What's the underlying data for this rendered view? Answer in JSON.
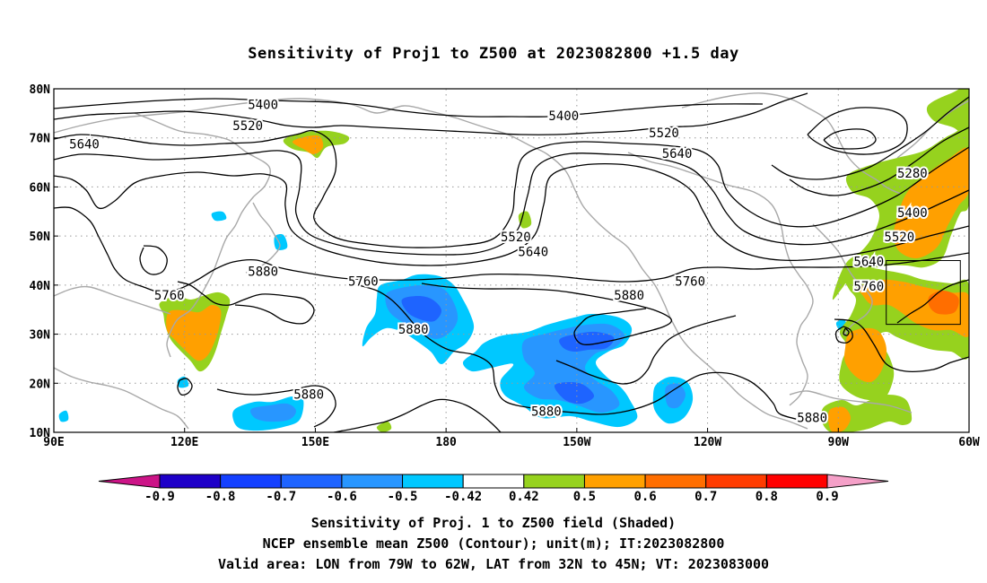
{
  "title": "Sensitivity of Proj1 to Z500 at 2023082800 +1.5 day",
  "lat_labels": [
    "80N",
    "70N",
    "60N",
    "50N",
    "40N",
    "30N",
    "20N",
    "10N"
  ],
  "lon_labels": [
    "90E",
    "120E",
    "150E",
    "180",
    "150W",
    "120W",
    "90W",
    "60W"
  ],
  "contour_labels": [
    {
      "text": "5400",
      "lon": 138,
      "lat": 76.8
    },
    {
      "text": "5400",
      "lon": -153,
      "lat": 74.5
    },
    {
      "text": "5520",
      "lon": 134.5,
      "lat": 72.5
    },
    {
      "text": "5520",
      "lon": -130,
      "lat": 71.0
    },
    {
      "text": "5640",
      "lon": 97,
      "lat": 68.8
    },
    {
      "text": "5640",
      "lon": -127,
      "lat": 66.8
    },
    {
      "text": "5520",
      "lon": -164,
      "lat": 49.8
    },
    {
      "text": "5640",
      "lon": -160,
      "lat": 46.8
    },
    {
      "text": "5280",
      "lon": -73,
      "lat": 62.8
    },
    {
      "text": "5400",
      "lon": -73,
      "lat": 54.8
    },
    {
      "text": "5520",
      "lon": -76,
      "lat": 49.8
    },
    {
      "text": "5640",
      "lon": -83,
      "lat": 44.8
    },
    {
      "text": "5760",
      "lon": -83,
      "lat": 39.8
    },
    {
      "text": "5880",
      "lon": 138,
      "lat": 42.8
    },
    {
      "text": "5760",
      "lon": 161,
      "lat": 40.8
    },
    {
      "text": "5760",
      "lon": -124,
      "lat": 40.8
    },
    {
      "text": "5880",
      "lon": -138,
      "lat": 38.0
    },
    {
      "text": "5760",
      "lon": 116.5,
      "lat": 38.0
    },
    {
      "text": "5880",
      "lon": 172.5,
      "lat": 31.0
    },
    {
      "text": "5880",
      "lon": 148.5,
      "lat": 17.8
    },
    {
      "text": "5880",
      "lon": -157,
      "lat": 14.3
    },
    {
      "text": "5880",
      "lon": -96,
      "lat": 13.0
    }
  ],
  "colorbar": {
    "labels": [
      "-0.9",
      "-0.8",
      "-0.7",
      "-0.6",
      "-0.5",
      "-0.42",
      "0.42",
      "0.5",
      "0.6",
      "0.7",
      "0.8",
      "0.9"
    ],
    "colors": [
      "#cc1487",
      "#1e00c8",
      "#1440ff",
      "#1e64ff",
      "#2896ff",
      "#00c8ff",
      "#ffffff",
      "#96d21e",
      "#ffa000",
      "#ff6e00",
      "#ff3c00",
      "#ff0000",
      "#f5a0c8"
    ]
  },
  "shading_colors": {
    "blue_light": "#00c8ff",
    "blue_mid": "#2896ff",
    "blue_dark": "#1e64ff",
    "green": "#96d21e",
    "orange": "#ffa000",
    "dark_orange": "#ff6e00"
  },
  "captions": {
    "line1": "Sensitivity of Proj. 1 to Z500 field (Shaded)",
    "line2": "NCEP ensemble mean Z500 (Contour); unit(m); IT:2023082800",
    "line3": "Valid area: LON from 79W to 62W, LAT from 32N to 45N; VT: 2023083000"
  },
  "valid_box": {
    "lon_west": -79,
    "lon_east": -62,
    "lat_south": 32,
    "lat_north": 45
  }
}
